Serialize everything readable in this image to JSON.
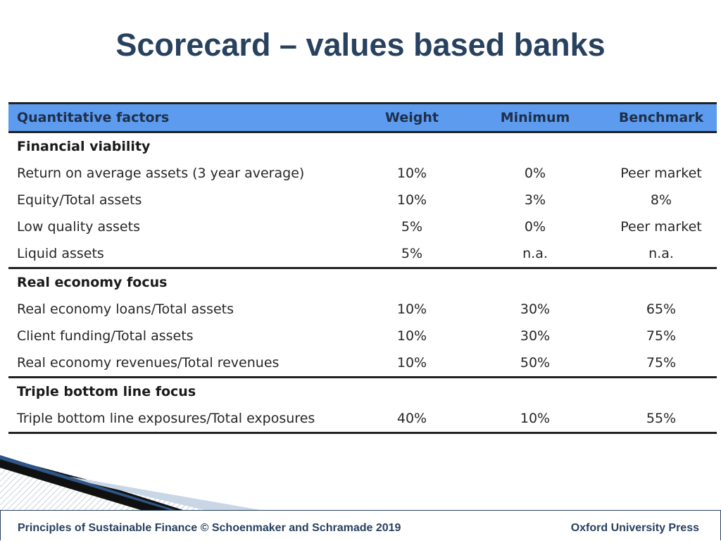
{
  "title": "Scorecard – values based banks",
  "table": {
    "headers": [
      "Quantitative factors",
      "Weight",
      "Minimum",
      "Benchmark"
    ],
    "groups": [
      {
        "name": "Financial viability",
        "rows": [
          [
            "Return on average assets (3 year average)",
            "10%",
            "0%",
            "Peer market"
          ],
          [
            "Equity/Total assets",
            "10%",
            "3%",
            "8%"
          ],
          [
            "Low quality assets",
            "5%",
            "0%",
            "Peer market"
          ],
          [
            "Liquid assets",
            "5%",
            "n.a.",
            "n.a."
          ]
        ]
      },
      {
        "name": "Real economy focus",
        "rows": [
          [
            "Real economy loans/Total assets",
            "10%",
            "30%",
            "65%"
          ],
          [
            "Client funding/Total assets",
            "10%",
            "30%",
            "75%"
          ],
          [
            "Real economy revenues/Total revenues",
            "10%",
            "50%",
            "75%"
          ]
        ]
      },
      {
        "name": "Triple bottom line focus",
        "rows": [
          [
            "Triple bottom line exposures/Total exposures",
            "40%",
            "10%",
            "55%"
          ]
        ]
      }
    ]
  },
  "footer": {
    "left": "Principles of Sustainable Finance © Schoenmaker and Schramade 2019",
    "right": "Oxford University Press"
  },
  "colors": {
    "title": "#27415f",
    "header_bg": "#5c9bee",
    "rule": "#222222"
  }
}
